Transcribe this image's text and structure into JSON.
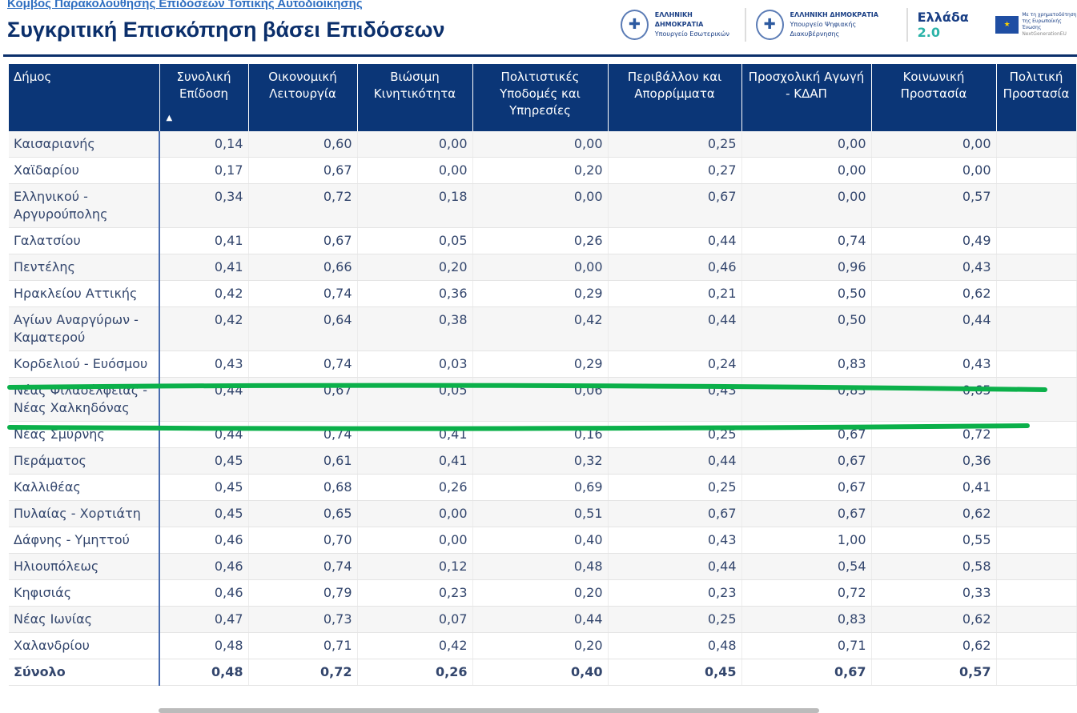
{
  "breadcrumb": "Κόμβος Παρακολούθησης Επιδόσεων Τοπικής Αυτοδιοίκησης",
  "title": "Συγκριτική Επισκόπηση βάσει Επιδόσεων",
  "logos": {
    "interior": {
      "line1": "ΕΛΛΗΝΙΚΗ ΔΗΜΟΚΡΑΤΙΑ",
      "line2": "Υπουργείο Εσωτερικών"
    },
    "digital": {
      "line1": "ΕΛΛΗΝΙΚΗ ΔΗΜΟΚΡΑΤΙΑ",
      "line2": "Υπουργείο Ψηφιακής Διακυβέρνησης"
    },
    "greece20": {
      "text": "Ελλάδα",
      "num": "2.0"
    },
    "eu": {
      "line1": "Με τη χρηματοδότηση",
      "line2": "της Ευρωπαϊκής Ένωσης",
      "line3": "NextGenerationEU"
    }
  },
  "table": {
    "headers": [
      "Δήμος",
      "Συνολική Επίδοση",
      "Οικονομική Λειτουργία",
      "Βιώσιμη Κινητικότητα",
      "Πολιτιστικές Υποδομές και Υπηρεσίες",
      "Περιβάλλον και Απορρίμματα",
      "Προσχολική Αγωγή - ΚΔΑΠ",
      "Κοινωνική Προστασία",
      "Πολιτική Προστασία"
    ],
    "sort_indicator": "▲",
    "rows": [
      [
        "Καισαριανής",
        "0,14",
        "0,60",
        "0,00",
        "0,00",
        "0,25",
        "0,00",
        "0,00",
        ""
      ],
      [
        "Χαϊδαρίου",
        "0,17",
        "0,67",
        "0,00",
        "0,20",
        "0,27",
        "0,00",
        "0,00",
        ""
      ],
      [
        "Ελληνικού - Αργυρούπολης",
        "0,34",
        "0,72",
        "0,18",
        "0,00",
        "0,67",
        "0,00",
        "0,57",
        ""
      ],
      [
        "Γαλατσίου",
        "0,41",
        "0,67",
        "0,05",
        "0,26",
        "0,44",
        "0,74",
        "0,49",
        ""
      ],
      [
        "Πεντέλης",
        "0,41",
        "0,66",
        "0,20",
        "0,00",
        "0,46",
        "0,96",
        "0,43",
        ""
      ],
      [
        "Ηρακλείου Αττικής",
        "0,42",
        "0,74",
        "0,36",
        "0,29",
        "0,21",
        "0,50",
        "0,62",
        ""
      ],
      [
        "Αγίων Αναργύρων - Καματερού",
        "0,42",
        "0,64",
        "0,38",
        "0,42",
        "0,44",
        "0,50",
        "0,44",
        ""
      ],
      [
        "Κορδελιού - Ευόσμου",
        "0,43",
        "0,74",
        "0,03",
        "0,29",
        "0,24",
        "0,83",
        "0,43",
        ""
      ],
      [
        "Νέας Φιλαδέλφειας - Νέας Χαλκηδόνας",
        "0,44",
        "0,67",
        "0,05",
        "0,06",
        "0,43",
        "0,83",
        "0,65",
        ""
      ],
      [
        "Νέας Σμύρνης",
        "0,44",
        "0,74",
        "0,41",
        "0,16",
        "0,25",
        "0,67",
        "0,72",
        ""
      ],
      [
        "Περάματος",
        "0,45",
        "0,61",
        "0,41",
        "0,32",
        "0,44",
        "0,67",
        "0,36",
        ""
      ],
      [
        "Καλλιθέας",
        "0,45",
        "0,68",
        "0,26",
        "0,69",
        "0,25",
        "0,67",
        "0,41",
        ""
      ],
      [
        "Πυλαίας - Χορτιάτη",
        "0,45",
        "0,65",
        "0,00",
        "0,51",
        "0,67",
        "0,67",
        "0,62",
        ""
      ],
      [
        "Δάφνης - Υμηττού",
        "0,46",
        "0,70",
        "0,00",
        "0,40",
        "0,43",
        "1,00",
        "0,55",
        ""
      ],
      [
        "Ηλιουπόλεως",
        "0,46",
        "0,74",
        "0,12",
        "0,48",
        "0,44",
        "0,54",
        "0,58",
        ""
      ],
      [
        "Κηφισιάς",
        "0,46",
        "0,79",
        "0,23",
        "0,20",
        "0,23",
        "0,72",
        "0,33",
        ""
      ],
      [
        "Νέας Ιωνίας",
        "0,47",
        "0,73",
        "0,07",
        "0,44",
        "0,25",
        "0,83",
        "0,62",
        ""
      ],
      [
        "Χαλανδρίου",
        "0,48",
        "0,71",
        "0,42",
        "0,20",
        "0,48",
        "0,71",
        "0,62",
        ""
      ]
    ],
    "total": [
      "Σύνολο",
      "0,48",
      "0,72",
      "0,26",
      "0,40",
      "0,45",
      "0,67",
      "0,57",
      ""
    ]
  },
  "colors": {
    "header": "#0b3677",
    "highlight": "#0bb04a"
  }
}
